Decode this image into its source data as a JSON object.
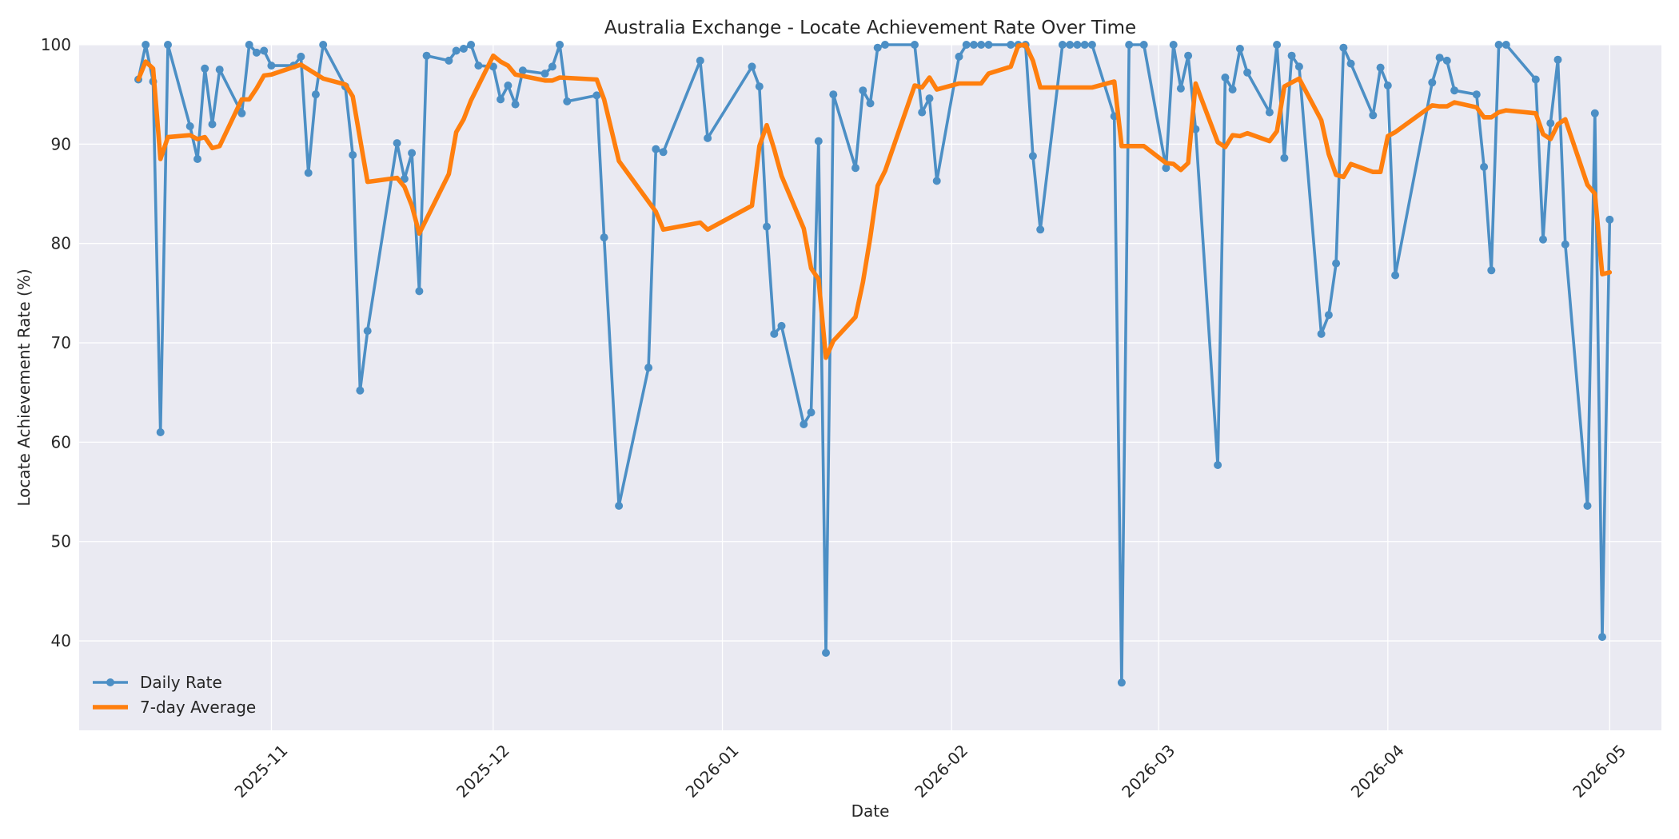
{
  "chart_data": {
    "type": "line",
    "title": "Australia Exchange - Locate Achievement Rate Over Time",
    "xlabel": "Date",
    "ylabel": "Locate Achievement Rate (%)",
    "xlim": [
      "2025-10-06",
      "2026-05-08"
    ],
    "ylim": [
      31,
      100
    ],
    "grid": true,
    "legend_position": "lower-left",
    "x_ticks": [
      "2025-11-01",
      "2025-12-01",
      "2026-01-01",
      "2026-02-01",
      "2026-03-01",
      "2026-04-01",
      "2026-05-01"
    ],
    "x_tick_labels": [
      "2025-11",
      "2025-12",
      "2026-01",
      "2026-02",
      "2026-03",
      "2026-04",
      "2026-05"
    ],
    "y_ticks": [
      40,
      50,
      60,
      70,
      80,
      90,
      100
    ],
    "y_tick_labels": [
      "40",
      "50",
      "60",
      "70",
      "80",
      "90",
      "100"
    ],
    "colors": {
      "background": "#eaeaf2",
      "daily": "#4c8fc5",
      "average": "#ff7f0e",
      "grid": "#ffffff"
    },
    "series": [
      {
        "name": "Daily Rate",
        "style": "line-markers",
        "points": [
          [
            "2025-10-14",
            96.5
          ],
          [
            "2025-10-15",
            100
          ],
          [
            "2025-10-16",
            96.3
          ],
          [
            "2025-10-17",
            61
          ],
          [
            "2025-10-18",
            100
          ],
          [
            "2025-10-21",
            91.8
          ],
          [
            "2025-10-22",
            88.5
          ],
          [
            "2025-10-23",
            97.6
          ],
          [
            "2025-10-24",
            92
          ],
          [
            "2025-10-25",
            97.5
          ],
          [
            "2025-10-28",
            93.1
          ],
          [
            "2025-10-29",
            100
          ],
          [
            "2025-10-30",
            99.2
          ],
          [
            "2025-10-31",
            99.4
          ],
          [
            "2025-11-01",
            97.9
          ],
          [
            "2025-11-04",
            97.9
          ],
          [
            "2025-11-05",
            98.8
          ],
          [
            "2025-11-06",
            87.1
          ],
          [
            "2025-11-07",
            95
          ],
          [
            "2025-11-08",
            100
          ],
          [
            "2025-11-11",
            95.8
          ],
          [
            "2025-11-12",
            88.9
          ],
          [
            "2025-11-13",
            65.2
          ],
          [
            "2025-11-14",
            71.2
          ],
          [
            "2025-11-18",
            90.1
          ],
          [
            "2025-11-19",
            86.5
          ],
          [
            "2025-11-20",
            89.1
          ],
          [
            "2025-11-21",
            75.2
          ],
          [
            "2025-11-22",
            98.9
          ],
          [
            "2025-11-25",
            98.4
          ],
          [
            "2025-11-26",
            99.4
          ],
          [
            "2025-11-27",
            99.6
          ],
          [
            "2025-11-28",
            100
          ],
          [
            "2025-11-29",
            97.9
          ],
          [
            "2025-12-01",
            97.8
          ],
          [
            "2025-12-02",
            94.5
          ],
          [
            "2025-12-03",
            95.9
          ],
          [
            "2025-12-04",
            94
          ],
          [
            "2025-12-05",
            97.4
          ],
          [
            "2025-12-08",
            97.1
          ],
          [
            "2025-12-09",
            97.8
          ],
          [
            "2025-12-10",
            100
          ],
          [
            "2025-12-11",
            94.3
          ],
          [
            "2025-12-15",
            94.9
          ],
          [
            "2025-12-16",
            80.6
          ],
          [
            "2025-12-18",
            53.6
          ],
          [
            "2025-12-22",
            67.5
          ],
          [
            "2025-12-23",
            89.5
          ],
          [
            "2025-12-24",
            89.2
          ],
          [
            "2025-12-29",
            98.4
          ],
          [
            "2025-12-30",
            90.6
          ],
          [
            "2026-01-05",
            97.8
          ],
          [
            "2026-01-06",
            95.8
          ],
          [
            "2026-01-07",
            81.7
          ],
          [
            "2026-01-08",
            70.9
          ],
          [
            "2026-01-09",
            71.7
          ],
          [
            "2026-01-12",
            61.8
          ],
          [
            "2026-01-13",
            63
          ],
          [
            "2026-01-14",
            90.3
          ],
          [
            "2026-01-15",
            38.8
          ],
          [
            "2026-01-16",
            95
          ],
          [
            "2026-01-19",
            87.6
          ],
          [
            "2026-01-20",
            95.4
          ],
          [
            "2026-01-21",
            94.1
          ],
          [
            "2026-01-22",
            99.7
          ],
          [
            "2026-01-23",
            100
          ],
          [
            "2026-01-27",
            100
          ],
          [
            "2026-01-28",
            93.2
          ],
          [
            "2026-01-29",
            94.6
          ],
          [
            "2026-01-30",
            86.3
          ],
          [
            "2026-02-02",
            98.8
          ],
          [
            "2026-02-03",
            100
          ],
          [
            "2026-02-04",
            100
          ],
          [
            "2026-02-05",
            100
          ],
          [
            "2026-02-06",
            100
          ],
          [
            "2026-02-09",
            100
          ],
          [
            "2026-02-10",
            100
          ],
          [
            "2026-02-11",
            100
          ],
          [
            "2026-02-12",
            88.8
          ],
          [
            "2026-02-13",
            81.4
          ],
          [
            "2026-02-16",
            100
          ],
          [
            "2026-02-17",
            100
          ],
          [
            "2026-02-18",
            100
          ],
          [
            "2026-02-19",
            100
          ],
          [
            "2026-02-20",
            100
          ],
          [
            "2026-02-23",
            92.8
          ],
          [
            "2026-02-24",
            35.8
          ],
          [
            "2026-02-25",
            100
          ],
          [
            "2026-02-27",
            100
          ],
          [
            "2026-03-02",
            87.6
          ],
          [
            "2026-03-03",
            100
          ],
          [
            "2026-03-04",
            95.6
          ],
          [
            "2026-03-05",
            98.9
          ],
          [
            "2026-03-06",
            91.5
          ],
          [
            "2026-03-09",
            57.7
          ],
          [
            "2026-03-10",
            96.7
          ],
          [
            "2026-03-11",
            95.5
          ],
          [
            "2026-03-12",
            99.6
          ],
          [
            "2026-03-13",
            97.2
          ],
          [
            "2026-03-16",
            93.2
          ],
          [
            "2026-03-17",
            100
          ],
          [
            "2026-03-18",
            88.6
          ],
          [
            "2026-03-19",
            98.9
          ],
          [
            "2026-03-20",
            97.8
          ],
          [
            "2026-03-23",
            70.9
          ],
          [
            "2026-03-24",
            72.8
          ],
          [
            "2026-03-25",
            78
          ],
          [
            "2026-03-26",
            99.7
          ],
          [
            "2026-03-27",
            98.1
          ],
          [
            "2026-03-30",
            92.9
          ],
          [
            "2026-03-31",
            97.7
          ],
          [
            "2026-04-01",
            95.9
          ],
          [
            "2026-04-02",
            76.8
          ],
          [
            "2026-04-07",
            96.2
          ],
          [
            "2026-04-08",
            98.7
          ],
          [
            "2026-04-09",
            98.4
          ],
          [
            "2026-04-10",
            95.4
          ],
          [
            "2026-04-13",
            95
          ],
          [
            "2026-04-14",
            87.7
          ],
          [
            "2026-04-15",
            77.3
          ],
          [
            "2026-04-16",
            100
          ],
          [
            "2026-04-17",
            100
          ],
          [
            "2026-04-21",
            96.5
          ],
          [
            "2026-04-22",
            80.4
          ],
          [
            "2026-04-23",
            92.1
          ],
          [
            "2026-04-24",
            98.5
          ],
          [
            "2026-04-25",
            79.9
          ],
          [
            "2026-04-28",
            53.6
          ],
          [
            "2026-04-29",
            93.1
          ],
          [
            "2026-04-30",
            40.4
          ],
          [
            "2026-05-01",
            82.4
          ]
        ]
      },
      {
        "name": "7-day Average",
        "style": "line",
        "points": [
          [
            "2025-10-14",
            96.5
          ],
          [
            "2025-10-15",
            98.3
          ],
          [
            "2025-10-16",
            97.6
          ],
          [
            "2025-10-17",
            88.5
          ],
          [
            "2025-10-18",
            90.7
          ],
          [
            "2025-10-21",
            90.9
          ],
          [
            "2025-10-22",
            90.5
          ],
          [
            "2025-10-23",
            90.7
          ],
          [
            "2025-10-24",
            89.6
          ],
          [
            "2025-10-25",
            89.8
          ],
          [
            "2025-10-28",
            94.5
          ],
          [
            "2025-10-29",
            94.5
          ],
          [
            "2025-10-30",
            95.6
          ],
          [
            "2025-10-31",
            96.9
          ],
          [
            "2025-11-01",
            97
          ],
          [
            "2025-11-05",
            98
          ],
          [
            "2025-11-08",
            96.6
          ],
          [
            "2025-11-11",
            96
          ],
          [
            "2025-11-12",
            94.8
          ],
          [
            "2025-11-13",
            90.5
          ],
          [
            "2025-11-14",
            86.2
          ],
          [
            "2025-11-18",
            86.6
          ],
          [
            "2025-11-19",
            85.7
          ],
          [
            "2025-11-20",
            83.8
          ],
          [
            "2025-11-21",
            81
          ],
          [
            "2025-11-25",
            87
          ],
          [
            "2025-11-26",
            91.2
          ],
          [
            "2025-11-27",
            92.5
          ],
          [
            "2025-11-28",
            94.4
          ],
          [
            "2025-12-01",
            98.9
          ],
          [
            "2025-12-02",
            98.3
          ],
          [
            "2025-12-03",
            97.9
          ],
          [
            "2025-12-04",
            97
          ],
          [
            "2025-12-08",
            96.4
          ],
          [
            "2025-12-09",
            96.4
          ],
          [
            "2025-12-10",
            96.7
          ],
          [
            "2025-12-15",
            96.5
          ],
          [
            "2025-12-16",
            94.5
          ],
          [
            "2025-12-18",
            88.3
          ],
          [
            "2025-12-23",
            83.2
          ],
          [
            "2025-12-24",
            81.4
          ],
          [
            "2025-12-29",
            82.1
          ],
          [
            "2025-12-30",
            81.4
          ],
          [
            "2026-01-05",
            83.8
          ],
          [
            "2026-01-06",
            89.8
          ],
          [
            "2026-01-07",
            91.9
          ],
          [
            "2026-01-08",
            89.5
          ],
          [
            "2026-01-09",
            86.8
          ],
          [
            "2026-01-12",
            81.5
          ],
          [
            "2026-01-13",
            77.5
          ],
          [
            "2026-01-14",
            76.4
          ],
          [
            "2026-01-15",
            68.5
          ],
          [
            "2026-01-16",
            70.2
          ],
          [
            "2026-01-19",
            72.6
          ],
          [
            "2026-01-20",
            76.1
          ],
          [
            "2026-01-21",
            80.6
          ],
          [
            "2026-01-22",
            85.8
          ],
          [
            "2026-01-23",
            87.3
          ],
          [
            "2026-01-27",
            95.9
          ],
          [
            "2026-01-28",
            95.7
          ],
          [
            "2026-01-29",
            96.7
          ],
          [
            "2026-01-30",
            95.5
          ],
          [
            "2026-02-02",
            96.1
          ],
          [
            "2026-02-05",
            96.1
          ],
          [
            "2026-02-06",
            97.1
          ],
          [
            "2026-02-09",
            97.8
          ],
          [
            "2026-02-10",
            99.9
          ],
          [
            "2026-02-11",
            100
          ],
          [
            "2026-02-12",
            98.4
          ],
          [
            "2026-02-13",
            95.7
          ],
          [
            "2026-02-20",
            95.7
          ],
          [
            "2026-02-23",
            96.3
          ],
          [
            "2026-02-24",
            89.8
          ],
          [
            "2026-02-27",
            89.8
          ],
          [
            "2026-03-02",
            88.1
          ],
          [
            "2026-03-03",
            88
          ],
          [
            "2026-03-04",
            87.4
          ],
          [
            "2026-03-05",
            88.1
          ],
          [
            "2026-03-06",
            96.1
          ],
          [
            "2026-03-09",
            90.2
          ],
          [
            "2026-03-10",
            89.7
          ],
          [
            "2026-03-11",
            90.9
          ],
          [
            "2026-03-12",
            90.8
          ],
          [
            "2026-03-13",
            91.1
          ],
          [
            "2026-03-16",
            90.3
          ],
          [
            "2026-03-17",
            91.3
          ],
          [
            "2026-03-18",
            95.8
          ],
          [
            "2026-03-20",
            96.6
          ],
          [
            "2026-03-23",
            92.4
          ],
          [
            "2026-03-24",
            89
          ],
          [
            "2026-03-25",
            86.9
          ],
          [
            "2026-03-26",
            86.7
          ],
          [
            "2026-03-27",
            88
          ],
          [
            "2026-03-30",
            87.2
          ],
          [
            "2026-03-31",
            87.2
          ],
          [
            "2026-04-01",
            90.8
          ],
          [
            "2026-04-02",
            91.2
          ],
          [
            "2026-04-07",
            93.9
          ],
          [
            "2026-04-08",
            93.8
          ],
          [
            "2026-04-09",
            93.8
          ],
          [
            "2026-04-10",
            94.2
          ],
          [
            "2026-04-13",
            93.7
          ],
          [
            "2026-04-14",
            92.7
          ],
          [
            "2026-04-15",
            92.7
          ],
          [
            "2026-04-16",
            93.2
          ],
          [
            "2026-04-17",
            93.4
          ],
          [
            "2026-04-21",
            93.1
          ],
          [
            "2026-04-22",
            91
          ],
          [
            "2026-04-23",
            90.5
          ],
          [
            "2026-04-24",
            92
          ],
          [
            "2026-04-25",
            92.5
          ],
          [
            "2026-04-28",
            85.9
          ],
          [
            "2026-04-29",
            85
          ],
          [
            "2026-04-30",
            76.9
          ],
          [
            "2026-05-01",
            77.1
          ]
        ]
      }
    ]
  }
}
